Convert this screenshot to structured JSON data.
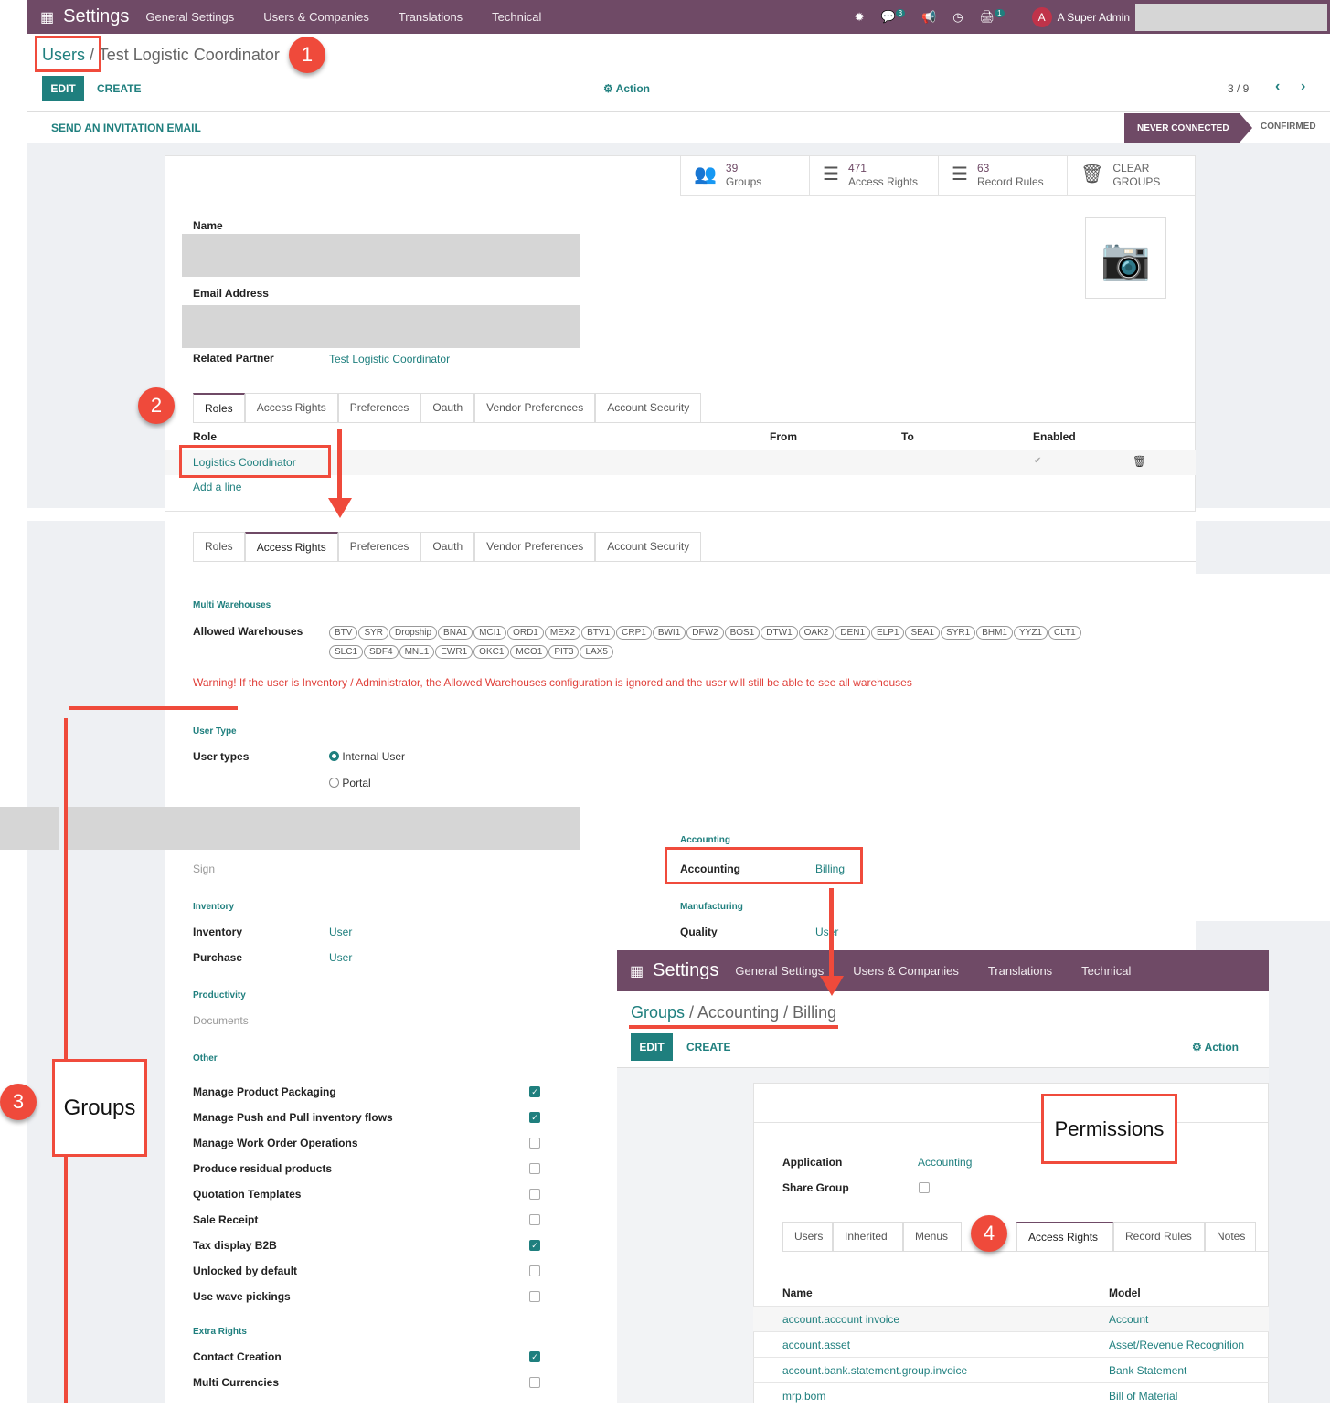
{
  "nav": {
    "app": "Settings",
    "menu": [
      "General Settings",
      "Users & Companies",
      "Translations",
      "Technical"
    ],
    "chat_badge": "3",
    "activity_badge": "1",
    "user_initial": "A",
    "user": "A Super Admin"
  },
  "colors": {
    "brand": "#6f4a66",
    "accent": "#1f7f7e",
    "annotation": "#ef4a3b"
  },
  "breadcrumb": {
    "root": "Users",
    "sep": "/",
    "current": "Test Logistic Coordinator"
  },
  "toolbar": {
    "edit": "EDIT",
    "create": "CREATE",
    "action": "Action",
    "pager": "3 / 9"
  },
  "statusbar": {
    "invite": "SEND AN INVITATION EMAIL",
    "stages": [
      "NEVER CONNECTED",
      "CONFIRMED"
    ]
  },
  "stats": [
    {
      "n": "39",
      "label": "Groups",
      "icon": "users-icon"
    },
    {
      "n": "471",
      "label": "Access Rights",
      "icon": "list-icon"
    },
    {
      "n": "63",
      "label": "Record Rules",
      "icon": "list-icon"
    },
    {
      "n": "CLEAR",
      "label": "GROUPS",
      "icon": "trash-icon"
    }
  ],
  "form": {
    "name_label": "Name",
    "email_label": "Email Address",
    "partner_label": "Related Partner",
    "partner": "Test Logistic Coordinator"
  },
  "tabs": [
    "Roles",
    "Access Rights",
    "Preferences",
    "Oauth",
    "Vendor Preferences",
    "Account Security"
  ],
  "roles": {
    "headers": [
      "Role",
      "From",
      "To",
      "Enabled"
    ],
    "row": "Logistics Coordinator",
    "add": "Add a line"
  },
  "warehouses": {
    "section": "Multi Warehouses",
    "label": "Allowed Warehouses",
    "items": [
      "BTV",
      "SYR",
      "Dropship",
      "BNA1",
      "MCI1",
      "ORD1",
      "MEX2",
      "BTV1",
      "CRP1",
      "BWI1",
      "DFW2",
      "BOS1",
      "DTW1",
      "OAK2",
      "DEN1",
      "ELP1",
      "SEA1",
      "SYR1",
      "BHM1",
      "YYZ1",
      "CLT1",
      "SLC1",
      "SDF4",
      "MNL1",
      "EWR1",
      "OKC1",
      "MCO1",
      "PIT3",
      "LAX5"
    ],
    "warning": "Warning! If the user is Inventory / Administrator, the Allowed Warehouses configuration is ignored and the user will still be able to see all warehouses"
  },
  "usertype": {
    "section": "User Type",
    "label": "User types",
    "options": [
      "Internal User",
      "Portal"
    ],
    "selected": "Internal User"
  },
  "apps": {
    "sign": "Sign",
    "inventory_section": "Inventory",
    "inventory": "Inventory",
    "inventory_val": "User",
    "purchase": "Purchase",
    "purchase_val": "User",
    "productivity": "Productivity",
    "documents": "Documents",
    "accounting_section": "Accounting",
    "accounting": "Accounting",
    "accounting_val": "Billing",
    "manufacturing": "Manufacturing",
    "quality": "Quality",
    "quality_val": "User"
  },
  "other": {
    "section": "Other",
    "items": [
      {
        "label": "Manage Product Packaging",
        "checked": true
      },
      {
        "label": "Manage Push and Pull inventory flows",
        "checked": true
      },
      {
        "label": "Manage Work Order Operations",
        "checked": false
      },
      {
        "label": "Produce residual products",
        "checked": false
      },
      {
        "label": "Quotation Templates",
        "checked": false
      },
      {
        "label": "Sale Receipt",
        "checked": false
      },
      {
        "label": "Tax display B2B",
        "checked": true
      },
      {
        "label": "Unlocked by default",
        "checked": false
      },
      {
        "label": "Use wave pickings",
        "checked": false
      }
    ]
  },
  "extra": {
    "section": "Extra Rights",
    "items": [
      {
        "label": "Contact Creation",
        "checked": true
      },
      {
        "label": "Multi Currencies",
        "checked": false
      }
    ]
  },
  "group": {
    "breadcrumb": "Groups / Accounting / Billing",
    "root": "Groups",
    "rest": " / Accounting / Billing",
    "application_label": "Application",
    "application": "Accounting",
    "share_label": "Share Group",
    "tabs": [
      "Users",
      "Inherited",
      "Menus",
      "Access Rights",
      "Record Rules",
      "Notes"
    ],
    "headers": [
      "Name",
      "Model"
    ],
    "rows": [
      [
        "account.account invoice",
        "Account"
      ],
      [
        "account.asset",
        "Asset/Revenue Recognition"
      ],
      [
        "account.bank.statement.group.invoice",
        "Bank Statement"
      ],
      [
        "mrp.bom",
        "Bill of Material"
      ]
    ]
  },
  "annotations": {
    "steps": [
      "1",
      "2",
      "3",
      "4"
    ],
    "groups": "Groups",
    "permissions": "Permissions"
  }
}
